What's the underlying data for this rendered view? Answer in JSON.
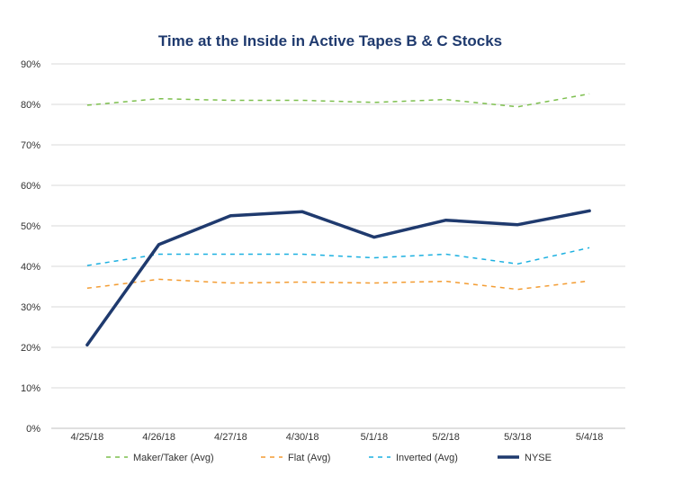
{
  "chart_data": {
    "type": "line",
    "title": "Time at the Inside in Active Tapes B & C Stocks",
    "xlabel": "",
    "ylabel": "",
    "categories": [
      "4/25/18",
      "4/26/18",
      "4/27/18",
      "4/30/18",
      "5/1/18",
      "5/2/18",
      "5/3/18",
      "5/4/18"
    ],
    "ylim": [
      0,
      90
    ],
    "yticks": [
      "0%",
      "10%",
      "20%",
      "30%",
      "40%",
      "50%",
      "60%",
      "70%",
      "80%",
      "90%"
    ],
    "grid": true,
    "legend_position": "bottom",
    "series": [
      {
        "name": "Maker/Taker (Avg)",
        "color": "#7dbf4e",
        "style": "dashed",
        "values": [
          79.8,
          81.4,
          81.0,
          81.0,
          80.5,
          81.2,
          79.4,
          82.6
        ]
      },
      {
        "name": "Flat (Avg)",
        "color": "#f39c32",
        "style": "dashed",
        "values": [
          34.6,
          36.8,
          35.9,
          36.1,
          35.9,
          36.3,
          34.3,
          36.4
        ]
      },
      {
        "name": "Inverted (Avg)",
        "color": "#1cb0e0",
        "style": "dashed",
        "values": [
          40.2,
          43.0,
          43.0,
          43.0,
          42.1,
          43.0,
          40.6,
          44.6
        ]
      },
      {
        "name": "NYSE",
        "color": "#1f3a6e",
        "style": "solid",
        "values": [
          20.6,
          45.4,
          52.5,
          53.5,
          47.2,
          51.4,
          50.3,
          53.7
        ]
      }
    ]
  }
}
